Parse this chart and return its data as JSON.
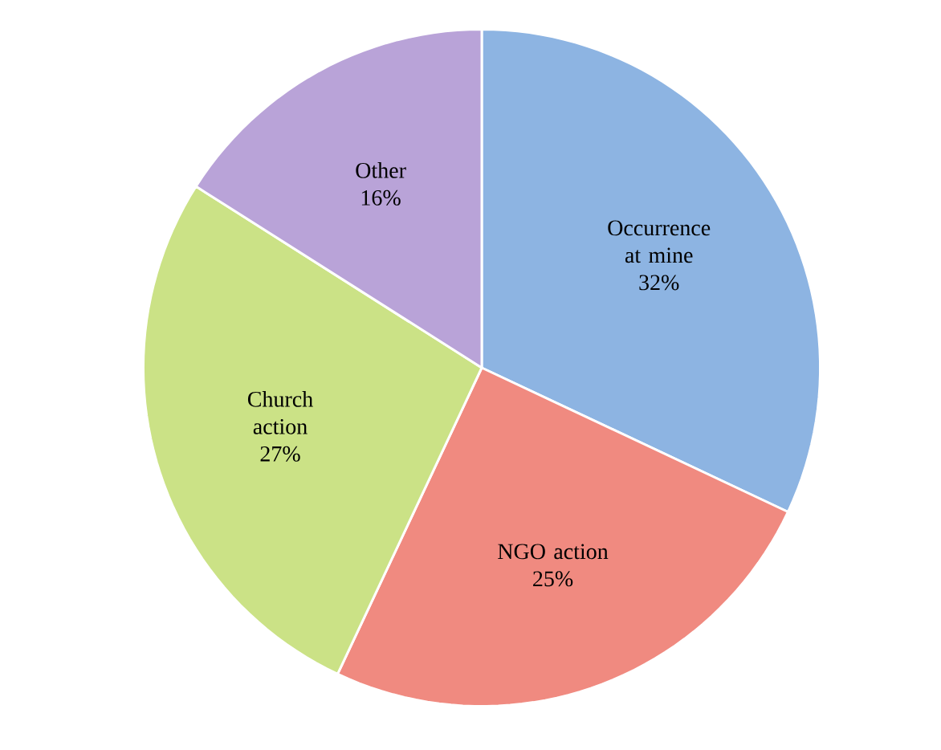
{
  "chart_data": {
    "type": "pie",
    "categories": [
      "Occurrence at mine",
      "NGO action",
      "Church action",
      "Other"
    ],
    "values": [
      32,
      25,
      27,
      16
    ],
    "value_labels": [
      "32%",
      "25%",
      "27%",
      "16%"
    ],
    "colors": [
      "#8db4e2",
      "#f08a80",
      "#cbe286",
      "#b9a3d8"
    ]
  }
}
